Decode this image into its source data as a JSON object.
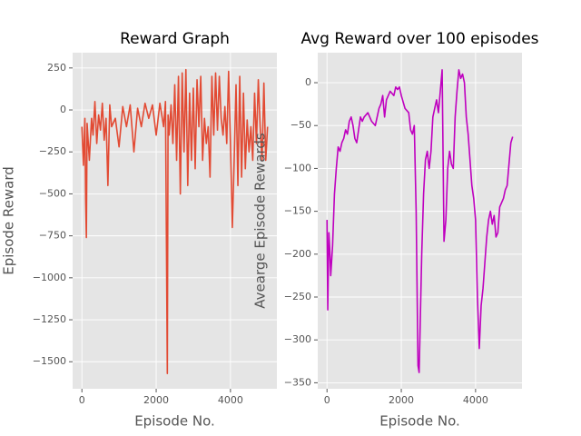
{
  "chart_data": [
    {
      "type": "line",
      "title": "Reward Graph",
      "x_label": "Episode No.",
      "y_label": "Episode Reward",
      "color": "#e24a33",
      "grid": true,
      "xlim": [
        -250,
        5250
      ],
      "ylim": [
        -1661,
        341
      ],
      "xticks": [
        0,
        2000,
        4000
      ],
      "yticks": [
        250,
        0,
        {
          "value": -250,
          "label": "−250"
        },
        {
          "value": -500,
          "label": "−500"
        },
        {
          "value": -750,
          "label": "−750"
        },
        {
          "value": -1000,
          "label": "−1000"
        },
        {
          "value": -1250,
          "label": "−1250"
        },
        {
          "value": -1500,
          "label": "−1500"
        }
      ],
      "x": [
        0,
        40,
        80,
        100,
        120,
        140,
        200,
        260,
        300,
        350,
        400,
        450,
        500,
        550,
        600,
        650,
        700,
        750,
        800,
        900,
        1000,
        1100,
        1200,
        1300,
        1400,
        1500,
        1600,
        1700,
        1800,
        1900,
        2000,
        2100,
        2200,
        2250,
        2300,
        2320,
        2350,
        2400,
        2450,
        2500,
        2550,
        2600,
        2650,
        2700,
        2750,
        2800,
        2850,
        2900,
        2950,
        3000,
        3050,
        3100,
        3150,
        3200,
        3250,
        3300,
        3350,
        3400,
        3450,
        3500,
        3550,
        3600,
        3650,
        3700,
        3750,
        3800,
        3850,
        3900,
        3950,
        4000,
        4050,
        4100,
        4150,
        4200,
        4250,
        4300,
        4350,
        4400,
        4450,
        4500,
        4550,
        4600,
        4650,
        4700,
        4750,
        4800,
        4850,
        4900,
        4950,
        4999
      ],
      "values": [
        -100,
        -330,
        -50,
        -530,
        -760,
        -80,
        -300,
        -50,
        -150,
        50,
        -200,
        -30,
        -120,
        40,
        -180,
        -50,
        -450,
        30,
        -100,
        -50,
        -220,
        20,
        -100,
        30,
        -250,
        10,
        -100,
        40,
        -50,
        30,
        -150,
        40,
        -100,
        50,
        -1570,
        -30,
        -150,
        30,
        -200,
        150,
        -300,
        200,
        -500,
        220,
        -250,
        240,
        -450,
        100,
        -300,
        130,
        -350,
        180,
        -100,
        200,
        -300,
        -50,
        -200,
        -100,
        -400,
        200,
        -150,
        220,
        -120,
        200,
        -50,
        -150,
        20,
        -200,
        230,
        -200,
        -700,
        -300,
        150,
        -450,
        200,
        -400,
        100,
        -350,
        -60,
        -250,
        -100,
        -300,
        100,
        -200,
        180,
        -100,
        -300,
        160,
        -300,
        -100
      ]
    },
    {
      "type": "line",
      "title": "Avg Reward over 100 episodes",
      "x_label": "Episode No.",
      "y_label": "Avearge Episode Rewards",
      "color": "#bf00bf",
      "grid": true,
      "xlim": [
        -250,
        5250
      ],
      "ylim": [
        -357,
        35
      ],
      "xticks": [
        0,
        2000,
        4000
      ],
      "yticks": [
        0,
        {
          "value": -50,
          "label": "−50"
        },
        {
          "value": -100,
          "label": "−100"
        },
        {
          "value": -150,
          "label": "−150"
        },
        {
          "value": -200,
          "label": "−200"
        },
        {
          "value": -250,
          "label": "−250"
        },
        {
          "value": -300,
          "label": "−300"
        },
        {
          "value": -350,
          "label": "−350"
        }
      ],
      "x": [
        0,
        20,
        50,
        80,
        100,
        150,
        200,
        250,
        300,
        350,
        400,
        450,
        500,
        550,
        600,
        650,
        700,
        750,
        800,
        850,
        900,
        950,
        1000,
        1100,
        1200,
        1300,
        1400,
        1450,
        1500,
        1550,
        1600,
        1650,
        1700,
        1800,
        1850,
        1900,
        1950,
        2000,
        2100,
        2200,
        2250,
        2300,
        2350,
        2400,
        2450,
        2480,
        2500,
        2550,
        2600,
        2650,
        2700,
        2750,
        2800,
        2850,
        2900,
        2950,
        3000,
        3050,
        3100,
        3150,
        3200,
        3250,
        3300,
        3350,
        3400,
        3450,
        3500,
        3550,
        3600,
        3650,
        3700,
        3750,
        3800,
        3850,
        3900,
        3950,
        4000,
        4050,
        4100,
        4150,
        4200,
        4250,
        4300,
        4350,
        4400,
        4450,
        4500,
        4550,
        4600,
        4650,
        4700,
        4750,
        4800,
        4850,
        4900,
        4950,
        4999
      ],
      "values": [
        -160,
        -265,
        -175,
        -200,
        -225,
        -190,
        -130,
        -100,
        -75,
        -80,
        -70,
        -65,
        -55,
        -60,
        -45,
        -40,
        -50,
        -65,
        -70,
        -55,
        -40,
        -45,
        -40,
        -35,
        -45,
        -50,
        -30,
        -25,
        -15,
        -40,
        -20,
        -15,
        -10,
        -15,
        -5,
        -8,
        -5,
        -15,
        -30,
        -35,
        -55,
        -60,
        -50,
        -150,
        -330,
        -338,
        -300,
        -200,
        -130,
        -90,
        -80,
        -100,
        -80,
        -40,
        -30,
        -20,
        -35,
        -10,
        15,
        -185,
        -160,
        -100,
        -80,
        -95,
        -100,
        -40,
        -10,
        15,
        5,
        10,
        0,
        -40,
        -60,
        -90,
        -120,
        -135,
        -160,
        -250,
        -310,
        -260,
        -240,
        -210,
        -180,
        -160,
        -150,
        -165,
        -155,
        -180,
        -175,
        -145,
        -140,
        -135,
        -125,
        -120,
        -95,
        -70,
        -63
      ]
    }
  ]
}
